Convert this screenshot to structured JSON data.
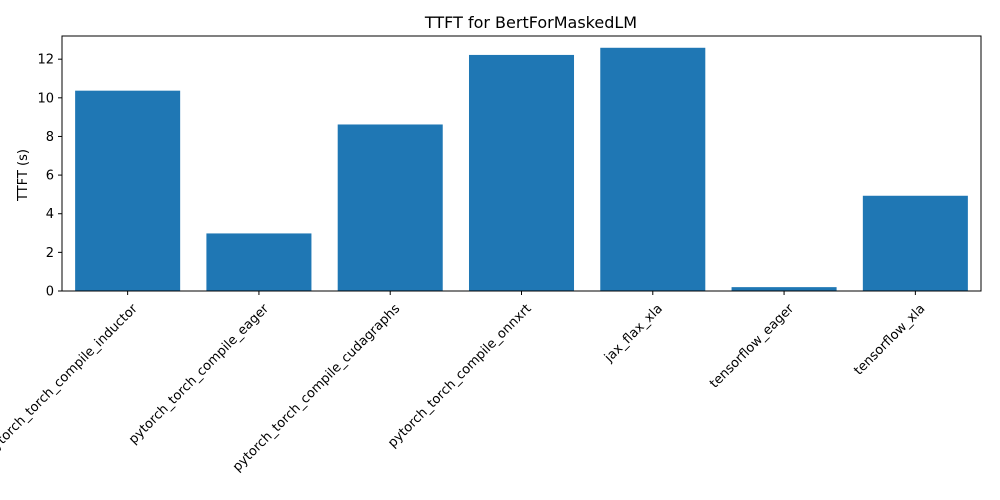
{
  "chart_data": {
    "type": "bar",
    "title": "TTFT for BertForMaskedLM",
    "xlabel": "",
    "ylabel": "TTFT (s)",
    "categories": [
      "pytorch_torch_compile_inductor",
      "pytorch_torch_compile_eager",
      "pytorch_torch_compile_cudagraphs",
      "pytorch_torch_compile_onnxrt",
      "jax_flax_xla",
      "tensorflow_eager",
      "tensorflow_xla"
    ],
    "values": [
      10.37,
      2.98,
      8.62,
      12.22,
      12.59,
      0.2,
      4.93
    ],
    "ylim": [
      0,
      13.2
    ],
    "yticks": [
      0,
      2,
      4,
      6,
      8,
      10,
      12
    ],
    "bar_color": "#1f77b4",
    "grid": false,
    "xtick_rotation_deg": 45
  }
}
